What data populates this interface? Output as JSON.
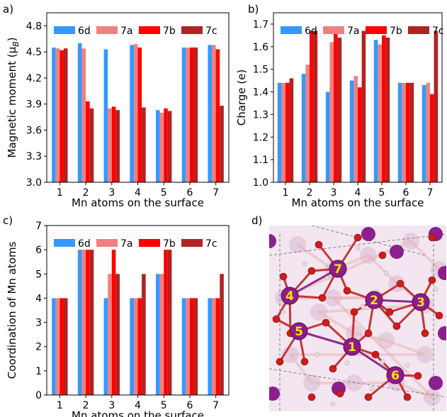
{
  "colors": {
    "6d": "#3399ff",
    "7a": "#f08080",
    "7b": "#ff0000",
    "7c": "#b22222"
  },
  "chart_data": [
    {
      "panel": "a)",
      "type": "bar",
      "categories": [
        "1",
        "2",
        "3",
        "4",
        "5",
        "6",
        "7"
      ],
      "xlabel": "Mn atoms on the surface",
      "ylabel": "Magnetic moment (μB)",
      "ylim": [
        3.0,
        4.95
      ],
      "yticks": [
        3.0,
        3.3,
        3.6,
        3.9,
        4.2,
        4.5,
        4.8
      ],
      "ytick_labels": [
        "3.0",
        "3.3",
        "3.6",
        "3.9",
        "4.2",
        "4.5",
        "4.8"
      ],
      "legend_position": "top",
      "series": [
        {
          "name": "6d",
          "values": [
            4.55,
            4.6,
            4.53,
            4.58,
            3.83,
            4.55,
            4.58
          ]
        },
        {
          "name": "7a",
          "values": [
            4.54,
            4.54,
            3.85,
            4.59,
            3.8,
            4.55,
            4.58
          ]
        },
        {
          "name": "7b",
          "values": [
            4.52,
            3.93,
            3.87,
            4.55,
            3.85,
            4.55,
            4.53
          ]
        },
        {
          "name": "7c",
          "values": [
            4.54,
            3.85,
            3.83,
            3.86,
            3.82,
            4.55,
            3.88
          ]
        }
      ]
    },
    {
      "panel": "b)",
      "type": "bar",
      "categories": [
        "1",
        "2",
        "3",
        "4",
        "5",
        "6",
        "7"
      ],
      "xlabel": "Mn atoms on the surface",
      "ylabel": "Charge (e)",
      "ylim": [
        1.0,
        1.75
      ],
      "yticks": [
        1.0,
        1.1,
        1.2,
        1.3,
        1.4,
        1.5,
        1.6,
        1.7
      ],
      "ytick_labels": [
        "1.0",
        "1.1",
        "1.2",
        "1.3",
        "1.4",
        "1.5",
        "1.6",
        "1.7"
      ],
      "legend_position": "top",
      "series": [
        {
          "name": "6d",
          "values": [
            1.44,
            1.48,
            1.4,
            1.45,
            1.63,
            1.44,
            1.43
          ]
        },
        {
          "name": "7a",
          "values": [
            1.44,
            1.52,
            1.62,
            1.47,
            1.61,
            1.44,
            1.44
          ]
        },
        {
          "name": "7b",
          "values": [
            1.44,
            1.67,
            1.66,
            1.42,
            1.65,
            1.44,
            1.39
          ]
        },
        {
          "name": "7c",
          "values": [
            1.46,
            1.67,
            1.64,
            1.67,
            1.64,
            1.44,
            1.67
          ]
        }
      ]
    },
    {
      "panel": "c)",
      "type": "bar",
      "categories": [
        "1",
        "2",
        "3",
        "4",
        "5",
        "6",
        "7"
      ],
      "xlabel": "Mn atoms on the surface",
      "ylabel": "Coordination of Mn atoms",
      "ylim": [
        0,
        7
      ],
      "yticks": [
        0,
        1,
        2,
        3,
        4,
        5,
        6,
        7
      ],
      "ytick_labels": [
        "0",
        "1",
        "2",
        "3",
        "4",
        "5",
        "6",
        "7"
      ],
      "legend_position": "top",
      "series": [
        {
          "name": "6d",
          "values": [
            4,
            6,
            4,
            4,
            5,
            4,
            4
          ]
        },
        {
          "name": "7a",
          "values": [
            4,
            6,
            5,
            4,
            5,
            4,
            4
          ]
        },
        {
          "name": "7b",
          "values": [
            4,
            6,
            6,
            4,
            6,
            4,
            4
          ]
        },
        {
          "name": "7c",
          "values": [
            4,
            6,
            5,
            5,
            6,
            4,
            5
          ]
        }
      ]
    }
  ],
  "panel_d": {
    "label": "d)",
    "atom_labels": [
      "1",
      "2",
      "3",
      "4",
      "5",
      "6",
      "7"
    ]
  }
}
